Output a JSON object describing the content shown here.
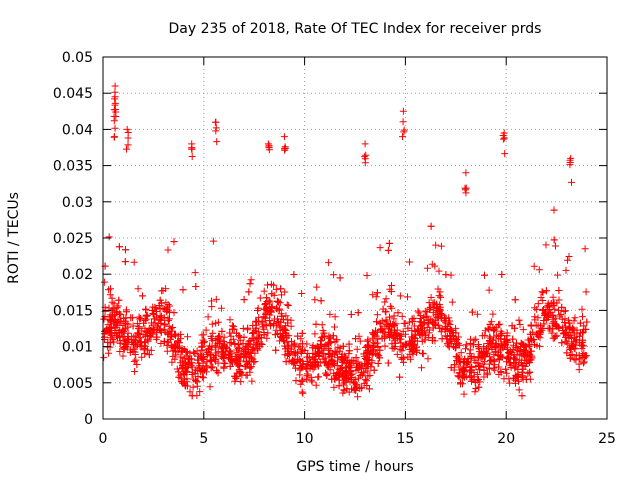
{
  "chart_data": {
    "type": "scatter",
    "title": "Day 235 of 2018, Rate Of TEC Index for receiver prds",
    "xlabel": "GPS time / hours",
    "ylabel": "ROTI / TECUs",
    "xlim": [
      0,
      25
    ],
    "ylim": [
      0,
      0.05
    ],
    "x_ticks": [
      0,
      5,
      10,
      15,
      20,
      25
    ],
    "x_tick_labels": [
      "0",
      "5",
      "10",
      "15",
      "20",
      "25"
    ],
    "y_ticks": [
      0,
      0.005,
      0.01,
      0.015,
      0.02,
      0.025,
      0.03,
      0.035,
      0.04,
      0.045,
      0.05
    ],
    "y_tick_labels": [
      "0",
      "0.005",
      "0.01",
      "0.015",
      "0.02",
      "0.025",
      "0.03",
      "0.035",
      "0.04",
      "0.045",
      "0.05"
    ],
    "grid": true,
    "marker": "+",
    "series": [
      {
        "name": "ROTI",
        "color": "#ff0000",
        "x_range": [
          0,
          24
        ],
        "typical_range": [
          0.003,
          0.025
        ],
        "peaks": [
          {
            "x": 0.6,
            "y": 0.046
          },
          {
            "x": 0.6,
            "y": 0.0445
          },
          {
            "x": 0.55,
            "y": 0.0418
          },
          {
            "x": 1.2,
            "y": 0.04
          },
          {
            "x": 5.6,
            "y": 0.041
          },
          {
            "x": 4.4,
            "y": 0.038
          },
          {
            "x": 8.2,
            "y": 0.038
          },
          {
            "x": 9.0,
            "y": 0.039
          },
          {
            "x": 13.0,
            "y": 0.038
          },
          {
            "x": 14.9,
            "y": 0.0425
          },
          {
            "x": 19.9,
            "y": 0.0395
          },
          {
            "x": 23.2,
            "y": 0.036
          },
          {
            "x": 18.0,
            "y": 0.034
          }
        ]
      }
    ]
  }
}
